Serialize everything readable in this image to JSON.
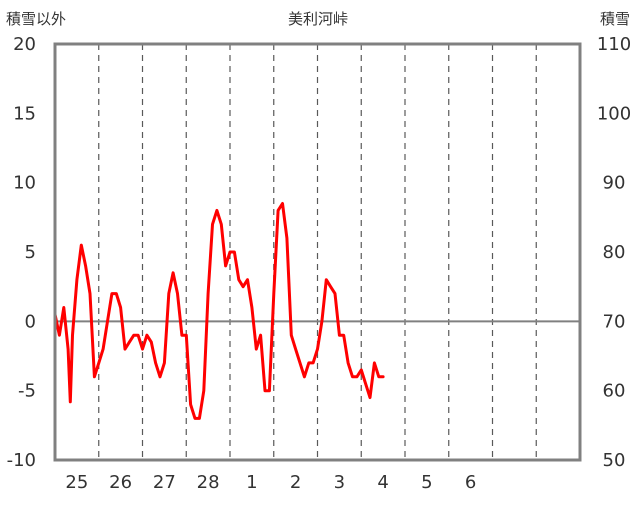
{
  "chart_data": {
    "type": "line",
    "title": "美利河峠",
    "ylabel_left": "積雪以外",
    "ylabel_right": "積雪",
    "left_axis": {
      "range": [
        -10,
        20
      ],
      "ticks": [
        -10,
        -5,
        0,
        5,
        10,
        15,
        20
      ]
    },
    "right_axis": {
      "range": [
        50,
        110
      ],
      "ticks": [
        50,
        60,
        70,
        80,
        90,
        100,
        110
      ]
    },
    "x_axis": {
      "range": [
        0,
        12
      ],
      "tick_labels": [
        "25",
        "26",
        "27",
        "28",
        "1",
        "2",
        "3",
        "4",
        "5",
        "6"
      ],
      "tick_positions": [
        0.5,
        1.5,
        2.5,
        3.5,
        4.5,
        5.5,
        6.5,
        7.5,
        8.5,
        9.5
      ]
    },
    "grid": {
      "vertical_dashed": true,
      "horizontal": false,
      "zero_line": true
    },
    "colors": {
      "red_series": "#ff0000",
      "green_series": "#92d050",
      "purple_series": "#7030a0",
      "blue_bars": "#0070c0",
      "frame": "#808080",
      "zero_line": "#808080",
      "grid": "#595959"
    },
    "series": [
      {
        "color": "red",
        "axis": "left",
        "x": [
          0.0,
          0.1,
          0.2,
          0.3,
          0.35,
          0.4,
          0.5,
          0.6,
          0.7,
          0.8,
          0.9,
          1.0,
          1.1,
          1.2,
          1.3,
          1.4,
          1.5,
          1.6,
          1.7,
          1.8,
          1.9,
          2.0,
          2.1,
          2.2,
          2.3,
          2.4,
          2.5,
          2.6,
          2.7,
          2.8,
          2.9,
          3.0,
          3.1,
          3.2,
          3.3,
          3.4,
          3.5,
          3.6,
          3.7,
          3.8,
          3.9,
          4.0,
          4.1,
          4.2,
          4.3,
          4.4,
          4.5,
          4.6,
          4.7,
          4.8,
          4.9,
          5.0,
          5.1,
          5.2,
          5.3,
          5.4,
          5.5,
          5.6,
          5.7,
          5.8,
          5.9,
          6.0,
          6.1,
          6.2,
          6.3,
          6.4,
          6.5,
          6.6,
          6.7,
          6.8,
          6.9,
          7.0,
          7.1,
          7.2,
          7.3,
          7.4,
          7.5
        ],
        "y": [
          0.5,
          -1,
          1,
          -2,
          -5.8,
          -1,
          3,
          5.5,
          4,
          2,
          -4,
          -3,
          -2,
          0,
          2,
          2,
          1,
          -2,
          -1.5,
          -1,
          -1,
          -2,
          -1,
          -1.5,
          -3,
          -4,
          -3,
          2,
          3.5,
          2,
          -1,
          -1,
          -6,
          -7,
          -7,
          -5,
          2,
          7,
          8,
          7,
          4,
          5,
          5,
          3,
          2.5,
          3,
          1,
          -2,
          -1,
          -5,
          -5,
          2,
          8,
          8.5,
          6,
          -1,
          -2,
          -3,
          -4,
          -3,
          -3,
          -2,
          0,
          3,
          2.5,
          2,
          -1,
          -1,
          -3,
          -4,
          -4,
          -3.5,
          -4.5,
          -5.5,
          -3,
          -4,
          -4
        ]
      }
    ]
  }
}
